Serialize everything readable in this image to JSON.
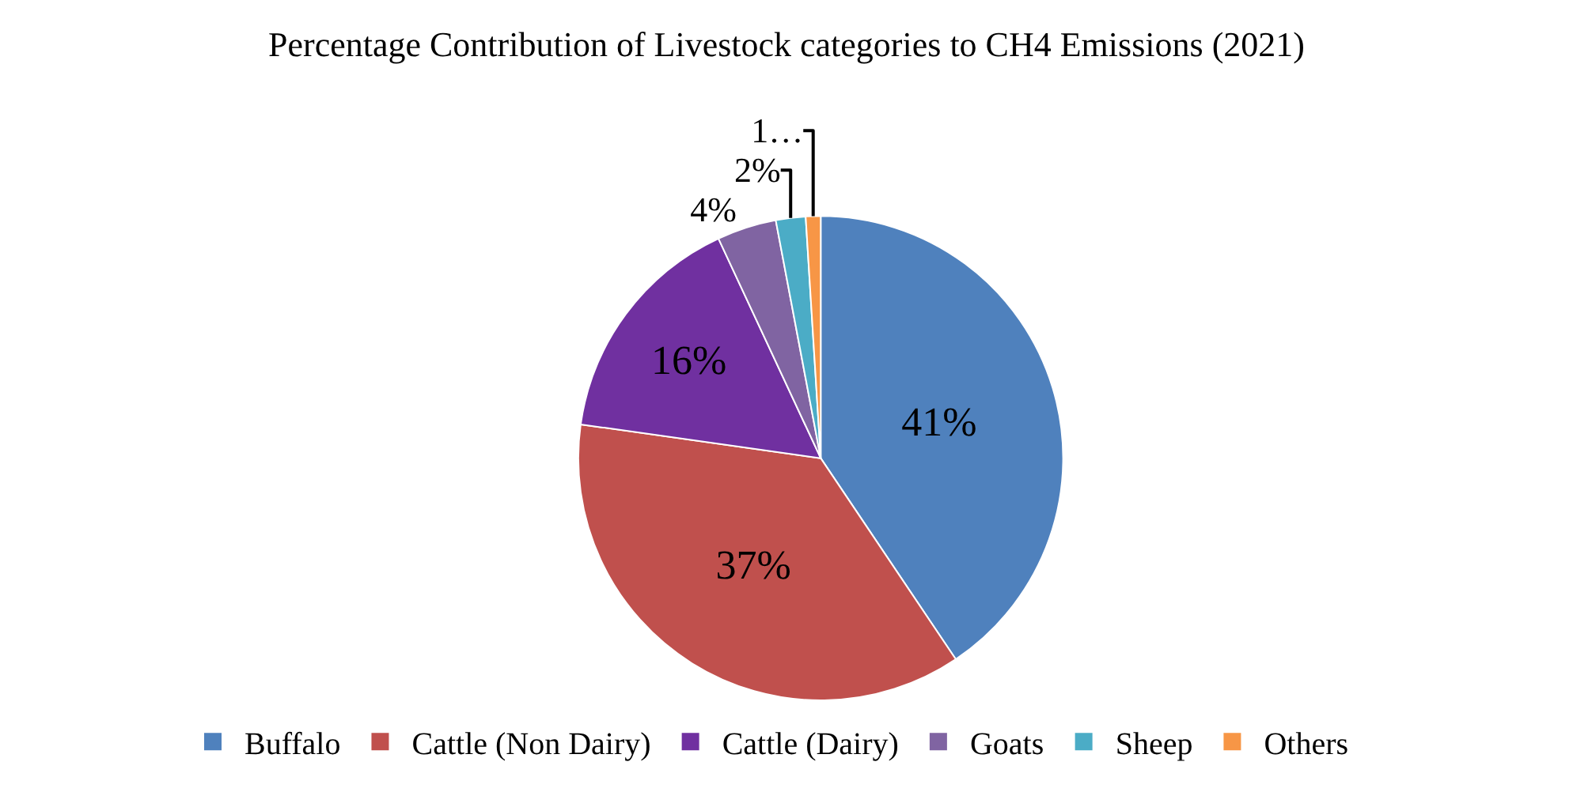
{
  "chart_data": {
    "type": "pie",
    "title": "Percentage Contribution of Livestock categories to CH4 Emissions (2021)",
    "categories": [
      "Buffalo",
      "Cattle (Non Dairy)",
      "Cattle (Dairy)",
      "Goats",
      "Sheep",
      "Others"
    ],
    "values": [
      41,
      37,
      16,
      4,
      2,
      1
    ],
    "value_labels": [
      "41%",
      "37%",
      "16%",
      "4%",
      "2%",
      "1…"
    ],
    "colors": [
      "#4f81bd",
      "#c0504d",
      "#7030a0",
      "#8064a2",
      "#4bacc6",
      "#f79646"
    ],
    "legend": "bottom"
  }
}
